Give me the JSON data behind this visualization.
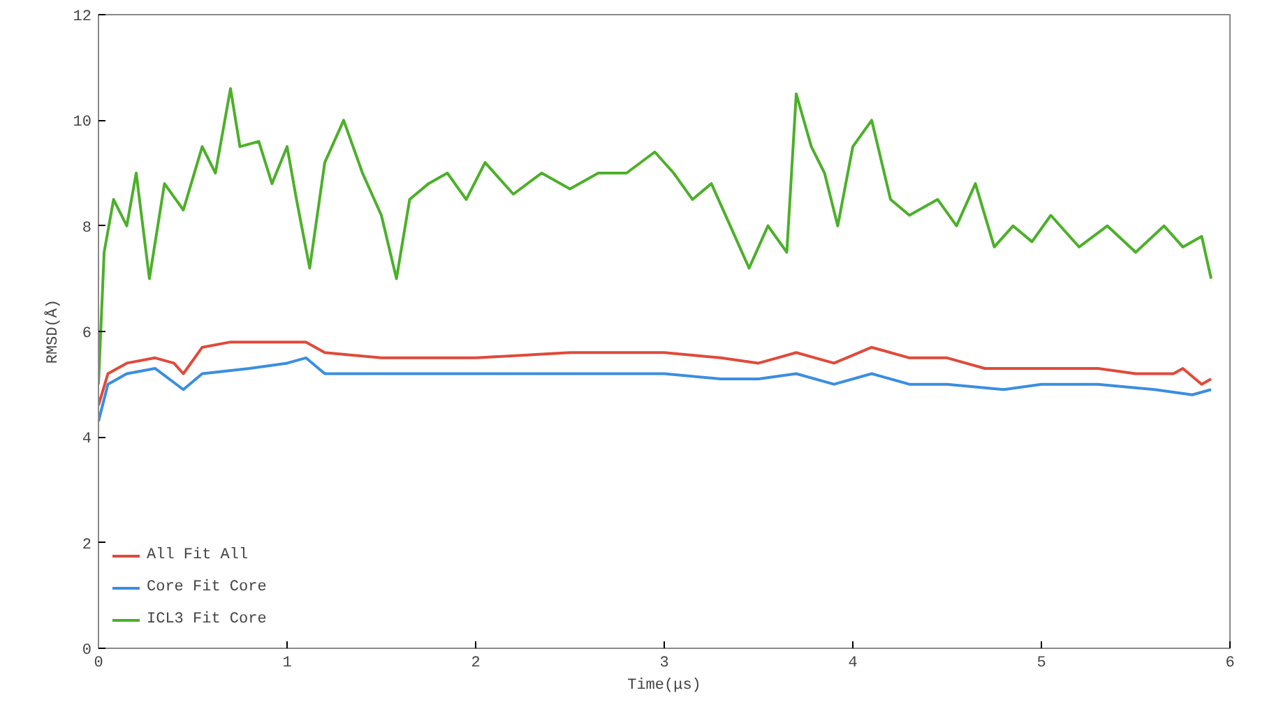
{
  "chart_data": {
    "type": "line",
    "xlabel": "Time(μs)",
    "ylabel": "RMSD(Å)",
    "xlim": [
      0,
      6
    ],
    "ylim": [
      0,
      12
    ],
    "xticks": [
      0,
      1,
      2,
      3,
      4,
      5,
      6
    ],
    "yticks": [
      0,
      2,
      4,
      6,
      8,
      10,
      12
    ],
    "grid": false,
    "legend": "bottom left",
    "line_style": "solid",
    "marker": "none",
    "series": [
      {
        "name": "All Fit All",
        "color": "#e04a3a",
        "x": [
          0,
          0.05,
          0.15,
          0.3,
          0.4,
          0.45,
          0.55,
          0.7,
          0.9,
          1.1,
          1.2,
          1.5,
          2.0,
          2.5,
          3.0,
          3.3,
          3.5,
          3.7,
          3.9,
          4.1,
          4.3,
          4.5,
          4.7,
          4.9,
          5.1,
          5.3,
          5.5,
          5.7,
          5.75,
          5.85,
          5.9
        ],
        "values": [
          4.6,
          5.2,
          5.4,
          5.5,
          5.4,
          5.2,
          5.7,
          5.8,
          5.8,
          5.8,
          5.6,
          5.5,
          5.5,
          5.6,
          5.6,
          5.5,
          5.4,
          5.6,
          5.4,
          5.7,
          5.5,
          5.5,
          5.3,
          5.3,
          5.3,
          5.3,
          5.2,
          5.2,
          5.3,
          5.0,
          5.1
        ]
      },
      {
        "name": "Core Fit Core",
        "color": "#3a8ee0",
        "x": [
          0,
          0.05,
          0.15,
          0.3,
          0.45,
          0.55,
          0.8,
          1.0,
          1.1,
          1.2,
          1.5,
          2.0,
          2.5,
          3.0,
          3.3,
          3.5,
          3.7,
          3.9,
          4.1,
          4.3,
          4.5,
          4.8,
          5.0,
          5.3,
          5.6,
          5.8,
          5.9
        ],
        "values": [
          4.3,
          5.0,
          5.2,
          5.3,
          4.9,
          5.2,
          5.3,
          5.4,
          5.5,
          5.2,
          5.2,
          5.2,
          5.2,
          5.2,
          5.1,
          5.1,
          5.2,
          5.0,
          5.2,
          5.0,
          5.0,
          4.9,
          5.0,
          5.0,
          4.9,
          4.8,
          4.9
        ]
      },
      {
        "name": "ICL3 Fit Core",
        "color": "#4cb02a",
        "x": [
          0,
          0.03,
          0.08,
          0.15,
          0.2,
          0.27,
          0.35,
          0.45,
          0.55,
          0.62,
          0.7,
          0.75,
          0.85,
          0.92,
          1.0,
          1.05,
          1.12,
          1.2,
          1.3,
          1.4,
          1.5,
          1.58,
          1.65,
          1.75,
          1.85,
          1.95,
          2.05,
          2.2,
          2.35,
          2.5,
          2.65,
          2.8,
          2.95,
          3.05,
          3.15,
          3.25,
          3.35,
          3.45,
          3.55,
          3.65,
          3.7,
          3.78,
          3.85,
          3.92,
          4.0,
          4.1,
          4.2,
          4.3,
          4.45,
          4.55,
          4.65,
          4.75,
          4.85,
          4.95,
          5.05,
          5.2,
          5.35,
          5.5,
          5.65,
          5.75,
          5.85,
          5.9
        ],
        "values": [
          5.0,
          7.5,
          8.5,
          8.0,
          9.0,
          7.0,
          8.8,
          8.3,
          9.5,
          9.0,
          10.6,
          9.5,
          9.6,
          8.8,
          9.5,
          8.5,
          7.2,
          9.2,
          10.0,
          9.0,
          8.2,
          7.0,
          8.5,
          8.8,
          9.0,
          8.5,
          9.2,
          8.6,
          9.0,
          8.7,
          9.0,
          9.0,
          9.4,
          9.0,
          8.5,
          8.8,
          8.0,
          7.2,
          8.0,
          7.5,
          10.5,
          9.5,
          9.0,
          8.0,
          9.5,
          10.0,
          8.5,
          8.2,
          8.5,
          8.0,
          8.8,
          7.6,
          8.0,
          7.7,
          8.2,
          7.6,
          8.0,
          7.5,
          8.0,
          7.6,
          7.8,
          7.0
        ]
      }
    ]
  }
}
